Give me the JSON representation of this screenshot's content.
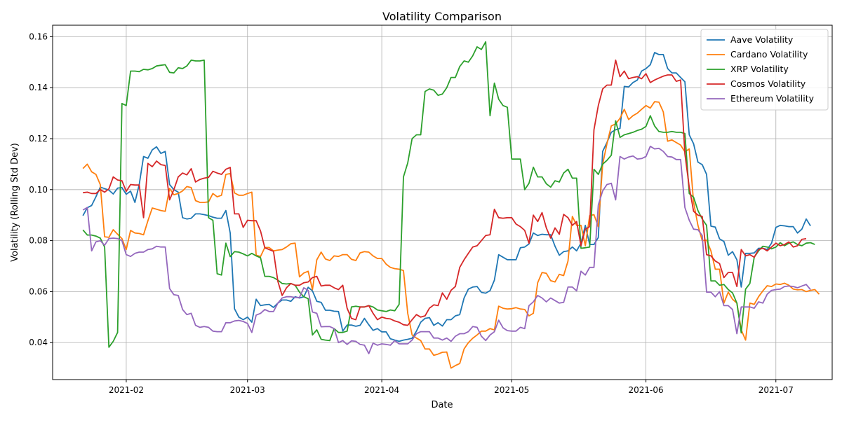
{
  "chart_data": {
    "type": "line",
    "title": "Volatility Comparison",
    "xlabel": "Date",
    "ylabel": "Volatility (Rolling Std Dev)",
    "x_start": "2021-01-22",
    "x_end": "2021-07-07",
    "xlim": [
      "2021-01-15",
      "2021-07-14"
    ],
    "ylim": [
      0.0255,
      0.1645
    ],
    "x_ticks": [
      "2021-02",
      "2021-03",
      "2021-04",
      "2021-05",
      "2021-06",
      "2021-07"
    ],
    "y_ticks": [
      "0.04",
      "0.06",
      "0.08",
      "0.10",
      "0.12",
      "0.14",
      "0.16"
    ],
    "y_tick_values": [
      0.04,
      0.06,
      0.08,
      0.1,
      0.12,
      0.14,
      0.16
    ],
    "grid": true,
    "legend_position": "top-right",
    "series": [
      {
        "name": "Aave Volatility",
        "color": "#1f77b4",
        "values": [
          0.0898,
          0.0929,
          0.0938,
          0.0972,
          0.101,
          0.1004,
          0.0998,
          0.0983,
          0.1006,
          0.1008,
          0.0982,
          0.0994,
          0.095,
          0.102,
          0.113,
          0.1123,
          0.1156,
          0.1168,
          0.1142,
          0.115,
          0.102,
          0.1,
          0.099,
          0.089,
          0.0885,
          0.0888,
          0.0905,
          0.0905,
          0.0902,
          0.0898,
          0.0892,
          0.0888,
          0.0888,
          0.0918,
          0.083,
          0.0533,
          0.05,
          0.049,
          0.05,
          0.048,
          0.057,
          0.0545,
          0.0548,
          0.055,
          0.0538,
          0.0555,
          0.0567,
          0.0567,
          0.0562,
          0.058,
          0.0575,
          0.058,
          0.0617,
          0.0603,
          0.0562,
          0.0558,
          0.0527,
          0.0527,
          0.0523,
          0.0522,
          0.0445,
          0.0469,
          0.0469,
          0.0464,
          0.0468,
          0.0495,
          0.047,
          0.0448,
          0.0455,
          0.0442,
          0.0442,
          0.0415,
          0.041,
          0.0405,
          0.041,
          0.0413,
          0.0417,
          0.0445,
          0.048,
          0.0495,
          0.0498,
          0.0468,
          0.0478,
          0.0465,
          0.049,
          0.049,
          0.0505,
          0.051,
          0.0575,
          0.061,
          0.0618,
          0.062,
          0.0597,
          0.0594,
          0.0604,
          0.0645,
          0.0745,
          0.0735,
          0.0725,
          0.0725,
          0.0725,
          0.0772,
          0.0775,
          0.0787,
          0.083,
          0.082,
          0.0825,
          0.0823,
          0.0823,
          0.0778,
          0.0743,
          0.0757,
          0.076,
          0.0775,
          0.076,
          0.079,
          0.086,
          0.0785,
          0.0785,
          0.0812,
          0.115,
          0.1185,
          0.1225,
          0.1235,
          0.124,
          0.1405,
          0.1403,
          0.142,
          0.143,
          0.1465,
          0.1475,
          0.149,
          0.1538,
          0.153,
          0.153,
          0.1475,
          0.1458,
          0.1458,
          0.144,
          0.1423,
          0.1215,
          0.118,
          0.1108,
          0.1098,
          0.106,
          0.0857,
          0.0853,
          0.0807,
          0.0797,
          0.0743,
          0.0757,
          0.0725,
          0.0618,
          0.075,
          0.075,
          0.0752,
          0.077,
          0.077,
          0.0765,
          0.079,
          0.0852,
          0.086,
          0.0858,
          0.0855,
          0.0855,
          0.083,
          0.0845,
          0.0885,
          0.0858
        ]
      },
      {
        "name": "Cardano Volatility",
        "color": "#ff7f0e",
        "values": [
          0.1083,
          0.11,
          0.107,
          0.106,
          0.102,
          0.0815,
          0.0813,
          0.0843,
          0.0825,
          0.0808,
          0.0765,
          0.084,
          0.083,
          0.0828,
          0.0823,
          0.0878,
          0.0928,
          0.0923,
          0.0918,
          0.0915,
          0.1005,
          0.098,
          0.0985,
          0.0995,
          0.1012,
          0.1008,
          0.0957,
          0.095,
          0.095,
          0.0952,
          0.0985,
          0.0972,
          0.0978,
          0.106,
          0.1063,
          0.0987,
          0.0978,
          0.0978,
          0.0985,
          0.099,
          0.0743,
          0.0738,
          0.0773,
          0.0773,
          0.076,
          0.0763,
          0.0765,
          0.0775,
          0.0788,
          0.079,
          0.0658,
          0.0673,
          0.068,
          0.0608,
          0.0725,
          0.0755,
          0.0728,
          0.0722,
          0.074,
          0.0738,
          0.0745,
          0.0745,
          0.0727,
          0.0722,
          0.0752,
          0.0757,
          0.0755,
          0.074,
          0.073,
          0.073,
          0.0708,
          0.0695,
          0.069,
          0.0688,
          0.0683,
          0.0515,
          0.043,
          0.0418,
          0.0408,
          0.0375,
          0.0375,
          0.035,
          0.0355,
          0.0362,
          0.0363,
          0.03,
          0.031,
          0.0318,
          0.0375,
          0.04,
          0.0417,
          0.043,
          0.0445,
          0.0445,
          0.0455,
          0.045,
          0.0543,
          0.0535,
          0.0532,
          0.0533,
          0.0537,
          0.0532,
          0.053,
          0.0505,
          0.0515,
          0.0635,
          0.0675,
          0.0672,
          0.0643,
          0.0638,
          0.0668,
          0.0663,
          0.072,
          0.0895,
          0.086,
          0.086,
          0.078,
          0.0898,
          0.0902,
          0.0855,
          0.11,
          0.118,
          0.125,
          0.1258,
          0.128,
          0.1315,
          0.1275,
          0.129,
          0.13,
          0.1315,
          0.133,
          0.132,
          0.1345,
          0.1343,
          0.1305,
          0.119,
          0.1195,
          0.1185,
          0.1175,
          0.1148,
          0.116,
          0.095,
          0.086,
          0.08,
          0.0802,
          0.076,
          0.0688,
          0.0688,
          0.0555,
          0.0598,
          0.057,
          0.0555,
          0.045,
          0.041,
          0.0555,
          0.055,
          0.058,
          0.0603,
          0.0623,
          0.062,
          0.063,
          0.0628,
          0.0633,
          0.0625,
          0.061,
          0.0607,
          0.0608,
          0.06,
          0.0605,
          0.0608,
          0.059
        ]
      },
      {
        "name": "XRP Volatility",
        "color": "#2ca02c",
        "values": [
          0.0842,
          0.0822,
          0.0822,
          0.0818,
          0.081,
          0.0775,
          0.0382,
          0.0405,
          0.044,
          0.1338,
          0.133,
          0.1465,
          0.1465,
          0.1463,
          0.1472,
          0.147,
          0.1475,
          0.1485,
          0.1488,
          0.149,
          0.146,
          0.1458,
          0.1478,
          0.1475,
          0.1485,
          0.1508,
          0.1505,
          0.1505,
          0.1508,
          0.089,
          0.088,
          0.067,
          0.0665,
          0.079,
          0.0737,
          0.0757,
          0.0755,
          0.0748,
          0.074,
          0.075,
          0.074,
          0.0733,
          0.066,
          0.066,
          0.0655,
          0.0645,
          0.0632,
          0.063,
          0.0632,
          0.0625,
          0.0598,
          0.058,
          0.0572,
          0.043,
          0.045,
          0.0413,
          0.041,
          0.0408,
          0.0455,
          0.044,
          0.044,
          0.0445,
          0.054,
          0.0543,
          0.054,
          0.054,
          0.0545,
          0.054,
          0.0528,
          0.0525,
          0.0522,
          0.0528,
          0.0525,
          0.055,
          0.105,
          0.1105,
          0.12,
          0.1215,
          0.1215,
          0.1385,
          0.1395,
          0.139,
          0.137,
          0.1375,
          0.14,
          0.144,
          0.144,
          0.1483,
          0.1505,
          0.15,
          0.1525,
          0.156,
          0.155,
          0.158,
          0.129,
          0.1418,
          0.1355,
          0.133,
          0.1323,
          0.112,
          0.112,
          0.112,
          0.1,
          0.1025,
          0.1088,
          0.105,
          0.105,
          0.1023,
          0.101,
          0.1035,
          0.103,
          0.1065,
          0.108,
          0.1045,
          0.1045,
          0.077,
          0.0772,
          0.0775,
          0.108,
          0.106,
          0.11,
          0.1115,
          0.1135,
          0.127,
          0.1205,
          0.1215,
          0.122,
          0.1225,
          0.1232,
          0.1237,
          0.1248,
          0.129,
          0.125,
          0.1228,
          0.1225,
          0.1225,
          0.1228,
          0.1225,
          0.1225,
          0.122,
          0.0985,
          0.097,
          0.0918,
          0.0885,
          0.086,
          0.0642,
          0.0642,
          0.0625,
          0.0628,
          0.0608,
          0.0595,
          0.0555,
          0.0438,
          0.061,
          0.0632,
          0.0735,
          0.076,
          0.0778,
          0.0775,
          0.0768,
          0.0775,
          0.0792,
          0.078,
          0.079,
          0.0795,
          0.0785,
          0.078,
          0.079,
          0.0792,
          0.0785
        ]
      },
      {
        "name": "Cosmos Volatility",
        "color": "#d62728",
        "values": [
          0.0988,
          0.099,
          0.0985,
          0.0985,
          0.1,
          0.099,
          0.1003,
          0.105,
          0.1038,
          0.1035,
          0.0993,
          0.102,
          0.1018,
          0.1018,
          0.089,
          0.1103,
          0.109,
          0.1112,
          0.1098,
          0.1095,
          0.096,
          0.1,
          0.105,
          0.1065,
          0.1058,
          0.1082,
          0.103,
          0.104,
          0.1045,
          0.1048,
          0.1072,
          0.1065,
          0.106,
          0.108,
          0.1087,
          0.0905,
          0.0905,
          0.0852,
          0.088,
          0.0878,
          0.0878,
          0.0838,
          0.0772,
          0.0765,
          0.0758,
          0.064,
          0.0585,
          0.0615,
          0.0632,
          0.0625,
          0.0625,
          0.0635,
          0.0638,
          0.0655,
          0.066,
          0.0622,
          0.0625,
          0.0625,
          0.0615,
          0.0608,
          0.0625,
          0.0535,
          0.0495,
          0.049,
          0.054,
          0.054,
          0.0545,
          0.0515,
          0.049,
          0.05,
          0.0495,
          0.0493,
          0.0485,
          0.048,
          0.047,
          0.0468,
          0.049,
          0.051,
          0.05,
          0.0505,
          0.0535,
          0.0548,
          0.0545,
          0.0595,
          0.057,
          0.0605,
          0.062,
          0.0695,
          0.0725,
          0.075,
          0.0775,
          0.078,
          0.08,
          0.082,
          0.0823,
          0.0923,
          0.089,
          0.0888,
          0.089,
          0.089,
          0.0865,
          0.0855,
          0.084,
          0.079,
          0.09,
          0.0875,
          0.091,
          0.085,
          0.081,
          0.085,
          0.0825,
          0.0903,
          0.089,
          0.086,
          0.0875,
          0.078,
          0.0845,
          0.0855,
          0.1235,
          0.133,
          0.1395,
          0.141,
          0.141,
          0.1508,
          0.1443,
          0.1465,
          0.1435,
          0.144,
          0.1443,
          0.1435,
          0.1455,
          0.142,
          0.143,
          0.1438,
          0.1445,
          0.145,
          0.145,
          0.1425,
          0.143,
          0.114,
          0.101,
          0.0915,
          0.09,
          0.0895,
          0.0745,
          0.074,
          0.072,
          0.071,
          0.0655,
          0.0675,
          0.0675,
          0.062,
          0.0765,
          0.074,
          0.0745,
          0.0735,
          0.0765,
          0.077,
          0.076,
          0.0775,
          0.079,
          0.078,
          0.0785,
          0.0795,
          0.0775,
          0.078,
          0.0805,
          0.0808
        ]
      },
      {
        "name": "Ethereum Volatility",
        "color": "#9467bd",
        "values": [
          0.092,
          0.093,
          0.076,
          0.0795,
          0.08,
          0.0782,
          0.0808,
          0.081,
          0.0808,
          0.08,
          0.0745,
          0.0738,
          0.075,
          0.0755,
          0.0755,
          0.0765,
          0.0768,
          0.0778,
          0.0775,
          0.0775,
          0.0612,
          0.0588,
          0.0585,
          0.053,
          0.051,
          0.0515,
          0.0468,
          0.046,
          0.0463,
          0.046,
          0.0445,
          0.0443,
          0.0443,
          0.0478,
          0.0478,
          0.0485,
          0.0487,
          0.0483,
          0.0475,
          0.044,
          0.0508,
          0.0515,
          0.053,
          0.0522,
          0.0522,
          0.0555,
          0.0575,
          0.058,
          0.058,
          0.0577,
          0.0577,
          0.0615,
          0.0605,
          0.052,
          0.0515,
          0.0462,
          0.0463,
          0.0463,
          0.0455,
          0.04,
          0.0408,
          0.0393,
          0.0407,
          0.0405,
          0.0393,
          0.039,
          0.0357,
          0.0398,
          0.039,
          0.0395,
          0.0393,
          0.039,
          0.0408,
          0.0395,
          0.0395,
          0.0395,
          0.041,
          0.0435,
          0.0443,
          0.0443,
          0.0443,
          0.0418,
          0.0418,
          0.041,
          0.0418,
          0.0405,
          0.0425,
          0.0435,
          0.0435,
          0.0443,
          0.0463,
          0.046,
          0.0425,
          0.0408,
          0.043,
          0.0443,
          0.0488,
          0.0458,
          0.0447,
          0.0445,
          0.0445,
          0.046,
          0.0455,
          0.0545,
          0.056,
          0.0585,
          0.0575,
          0.056,
          0.0575,
          0.0565,
          0.0555,
          0.0558,
          0.0618,
          0.0618,
          0.0603,
          0.068,
          0.0665,
          0.0695,
          0.0695,
          0.094,
          0.0995,
          0.102,
          0.1025,
          0.096,
          0.113,
          0.112,
          0.1128,
          0.1132,
          0.112,
          0.1122,
          0.113,
          0.117,
          0.116,
          0.1162,
          0.115,
          0.113,
          0.1128,
          0.1118,
          0.1118,
          0.093,
          0.088,
          0.0845,
          0.0843,
          0.082,
          0.0598,
          0.0598,
          0.058,
          0.06,
          0.0545,
          0.0545,
          0.053,
          0.0435,
          0.054,
          0.054,
          0.054,
          0.0535,
          0.056,
          0.0555,
          0.059,
          0.0605,
          0.0608,
          0.061,
          0.062,
          0.0622,
          0.062,
          0.0615,
          0.0622,
          0.0628,
          0.0608
        ]
      }
    ]
  }
}
